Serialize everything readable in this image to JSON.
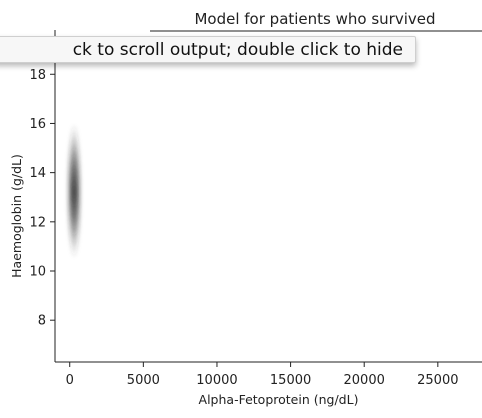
{
  "tooltip": {
    "text": "ck to scroll output; double click to hide"
  },
  "chart_data": {
    "type": "kde-contour",
    "title": "Model for patients who survived",
    "xlabel": "Alpha-Fetoprotein (ng/dL)",
    "ylabel": "Haemoglobin (g/dL)",
    "xlim": [
      -1000,
      28000
    ],
    "ylim": [
      6.3,
      19.8
    ],
    "x_ticks": [
      0,
      5000,
      10000,
      15000,
      20000,
      25000
    ],
    "x_tick_labels": [
      "0",
      "5000",
      "10000",
      "15000",
      "20000",
      "25000"
    ],
    "y_ticks": [
      8,
      10,
      12,
      14,
      16,
      18
    ],
    "y_tick_labels": [
      "8",
      "10",
      "12",
      "14",
      "16",
      "18"
    ],
    "density_center": {
      "x": 300,
      "y": 13.2
    },
    "density_extent": {
      "x_min": -100,
      "x_max": 800,
      "y_min": 10.6,
      "y_max": 15.9
    },
    "density_color": "#3a3a3a",
    "grid": false
  }
}
